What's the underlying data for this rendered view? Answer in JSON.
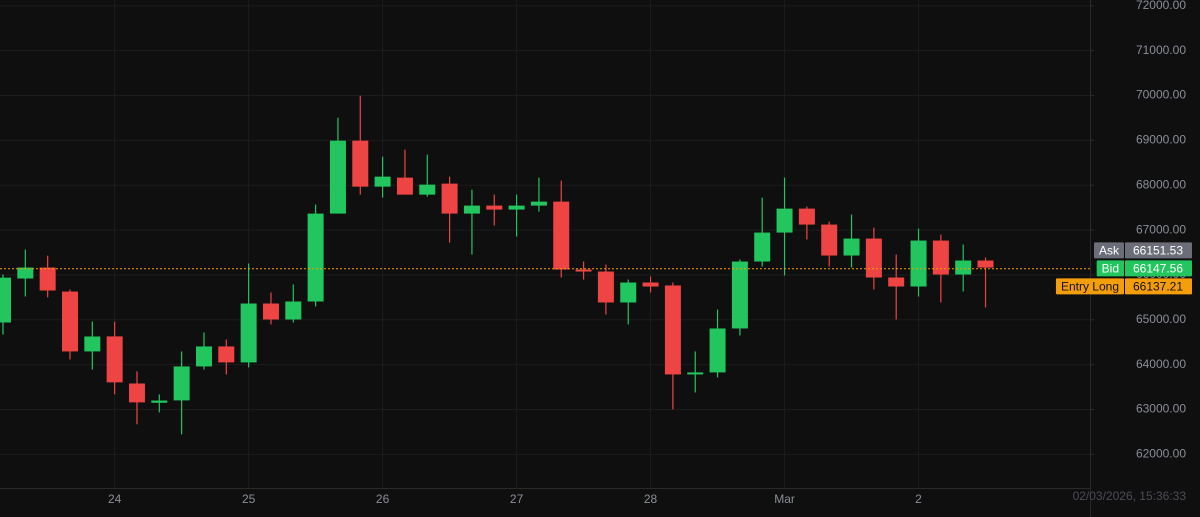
{
  "chart_data": {
    "type": "candlestick",
    "categories": [
      null,
      null,
      null,
      null,
      null,
      "24",
      null,
      null,
      null,
      null,
      null,
      "25",
      null,
      null,
      null,
      null,
      null,
      "26",
      null,
      null,
      null,
      null,
      null,
      "27",
      null,
      null,
      null,
      null,
      null,
      "28",
      null,
      null,
      null,
      null,
      null,
      "Mar",
      null,
      null,
      null,
      null,
      null,
      "2",
      null,
      null,
      null
    ],
    "open": [
      64940,
      65920,
      66165,
      65630,
      64295,
      64630,
      63580,
      63150,
      63203,
      63960,
      64406,
      64050,
      65363,
      65007,
      65408,
      67368,
      68994,
      67969,
      68170,
      67791,
      68036,
      67368,
      67546,
      67457,
      67546,
      67635,
      66121,
      66076,
      65386,
      65831,
      65765,
      63782,
      63827,
      64807,
      66299,
      66945,
      67479,
      67123,
      66433,
      66811,
      65943,
      65742,
      66767,
      66010,
      66322
    ],
    "high": [
      66010,
      66566,
      66430,
      65675,
      64960,
      64960,
      63850,
      63337,
      64295,
      64718,
      64562,
      66254,
      65609,
      65787,
      67568,
      69506,
      69996,
      68637,
      68793,
      68682,
      68192,
      67902,
      67791,
      67791,
      68170,
      68103,
      66300,
      66232,
      65898,
      65965,
      65831,
      64295,
      65230,
      66344,
      67724,
      68170,
      67524,
      67190,
      67346,
      67056,
      66455,
      67034,
      66900,
      66678,
      66388
    ],
    "low": [
      64670,
      65520,
      65500,
      64116,
      63890,
      63337,
      62670,
      62936,
      62446,
      63890,
      63782,
      63940,
      64896,
      64940,
      65297,
      67368,
      67791,
      67724,
      67791,
      67746,
      66722,
      66455,
      67100,
      66856,
      67412,
      65943,
      65898,
      65118,
      64896,
      65609,
      63003,
      63381,
      63715,
      64651,
      66188,
      65987,
      66790,
      66188,
      66165,
      65675,
      65007,
      65520,
      65386,
      65631,
      65275
    ],
    "close": [
      65940,
      66165,
      65653,
      64295,
      64628,
      63605,
      63159,
      63200,
      63960,
      64406,
      64050,
      65363,
      65007,
      65408,
      67368,
      68994,
      67969,
      68192,
      67791,
      68014,
      67368,
      67546,
      67457,
      67546,
      67635,
      66121,
      66076,
      65386,
      65831,
      65742,
      63782,
      63827,
      64807,
      66299,
      66945,
      67479,
      67123,
      66433,
      66811,
      65943,
      65742,
      66767,
      66010,
      66322,
      66165
    ],
    "up_color": "#22c55e",
    "down_color": "#ef4444",
    "ylim": [
      61250,
      72130
    ],
    "yticks": [
      {
        "value": 62000,
        "label": "62000.00"
      },
      {
        "value": 63000,
        "label": "63000.00"
      },
      {
        "value": 64000,
        "label": "64000.00"
      },
      {
        "value": 65000,
        "label": "65000.00"
      },
      {
        "value": 66000,
        "label": "66000.00"
      },
      {
        "value": 67000,
        "label": "67000.00"
      },
      {
        "value": 68000,
        "label": "68000.00"
      },
      {
        "value": 69000,
        "label": "69000.00"
      },
      {
        "value": 70000,
        "label": "70000.00"
      },
      {
        "value": 71000,
        "label": "71000.00"
      },
      {
        "value": 72000,
        "label": "72000.00"
      }
    ],
    "grid": true,
    "price_lines": [
      {
        "label": "Ask",
        "value": 66151.53,
        "color": "#6b6e78"
      },
      {
        "label": "Bid",
        "value": 66147.56,
        "color": "#22c55e"
      },
      {
        "label": "Entry Long",
        "value": 66137.21,
        "color": "#f59e0b"
      }
    ],
    "timestamp": "02/03/2026, 15:36:33"
  }
}
